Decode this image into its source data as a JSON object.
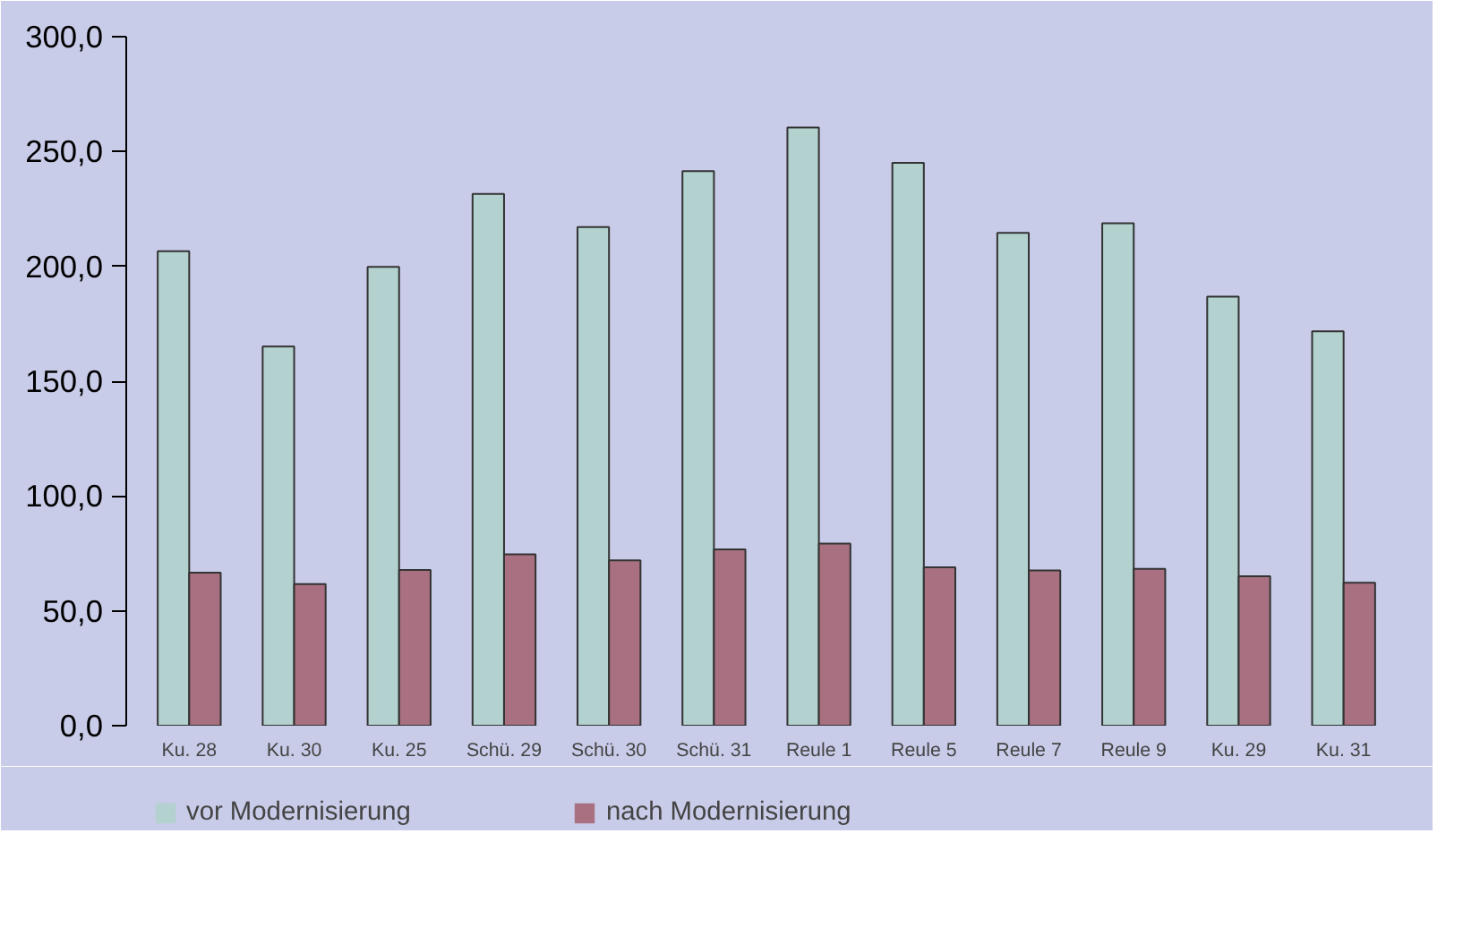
{
  "chart_data": {
    "type": "bar",
    "categories": [
      "Ku. 28",
      "Ku. 30",
      "Ku. 25",
      "Schü. 29",
      "Schü. 30",
      "Schü. 31",
      "Reule 1",
      "Reule 5",
      "Reule 7",
      "Reule 9",
      "Ku. 29",
      "Ku. 31"
    ],
    "series": [
      {
        "name": "vor Modernisierung",
        "color": "#b2d1cf",
        "values": [
          206.6,
          165.1,
          199.8,
          231.5,
          217.1,
          241.5,
          260.5,
          245.1,
          214.6,
          218.8,
          186.8,
          171.7
        ]
      },
      {
        "name": "nach Modernisierung",
        "color": "#a87080",
        "values": [
          66.6,
          61.7,
          67.8,
          74.6,
          72.0,
          76.8,
          79.3,
          69.0,
          67.6,
          68.3,
          65.1,
          62.2
        ]
      }
    ],
    "ylim": [
      0,
      300
    ],
    "yticks": [
      {
        "value": 0,
        "label": "0,0"
      },
      {
        "value": 50,
        "label": "50,0"
      },
      {
        "value": 100,
        "label": "100,0"
      },
      {
        "value": 150,
        "label": "150,0"
      },
      {
        "value": 200,
        "label": "200,0"
      },
      {
        "value": 250,
        "label": "250,0"
      },
      {
        "value": 300,
        "label": "300,0"
      }
    ],
    "grid": false,
    "legend": "bottom left"
  }
}
